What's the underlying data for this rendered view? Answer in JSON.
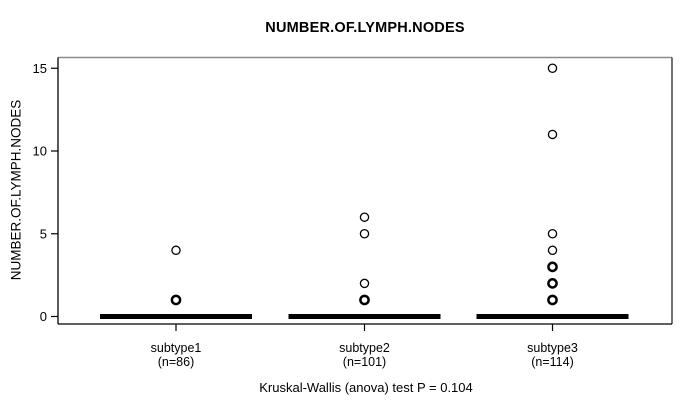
{
  "title": "NUMBER.OF.LYMPH.NODES",
  "ylabel": "NUMBER.OF.LYMPH.NODES",
  "caption": "Kruskal-Wallis (anova) test P = 0.104",
  "colors": {
    "foreground": "#000000",
    "background": "#ffffff",
    "box_border_top": "#8a8a8a",
    "box_border_right": "#454545",
    "box_border_dark": "#000000"
  },
  "chart_data": {
    "type": "boxplot",
    "title": "NUMBER.OF.LYMPH.NODES",
    "ylabel": "NUMBER.OF.LYMPH.NODES",
    "footnote": "Kruskal-Wallis (anova) test P = 0.104",
    "ylim": [
      0,
      15
    ],
    "yticks": [
      0,
      5,
      10,
      15
    ],
    "grid": false,
    "legend": false,
    "groups": [
      {
        "label": "subtype1",
        "sublabel": "(n=86)",
        "n": 86,
        "median": 0,
        "q1": 0,
        "q3": 0,
        "whisker_low": 0,
        "whisker_high": 0,
        "outliers": [
          {
            "value": 4,
            "overplotted": false
          },
          {
            "value": 1,
            "overplotted": true
          }
        ]
      },
      {
        "label": "subtype2",
        "sublabel": "(n=101)",
        "n": 101,
        "median": 0,
        "q1": 0,
        "q3": 0,
        "whisker_low": 0,
        "whisker_high": 0,
        "outliers": [
          {
            "value": 6,
            "overplotted": false
          },
          {
            "value": 5,
            "overplotted": false
          },
          {
            "value": 2,
            "overplotted": false
          },
          {
            "value": 1,
            "overplotted": true
          }
        ]
      },
      {
        "label": "subtype3",
        "sublabel": "(n=114)",
        "n": 114,
        "median": 0,
        "q1": 0,
        "q3": 0,
        "whisker_low": 0,
        "whisker_high": 0,
        "outliers": [
          {
            "value": 15,
            "overplotted": false
          },
          {
            "value": 11,
            "overplotted": false
          },
          {
            "value": 5,
            "overplotted": false
          },
          {
            "value": 4,
            "overplotted": false
          },
          {
            "value": 3,
            "overplotted": true
          },
          {
            "value": 2,
            "overplotted": true
          },
          {
            "value": 1,
            "overplotted": true
          }
        ]
      }
    ]
  }
}
